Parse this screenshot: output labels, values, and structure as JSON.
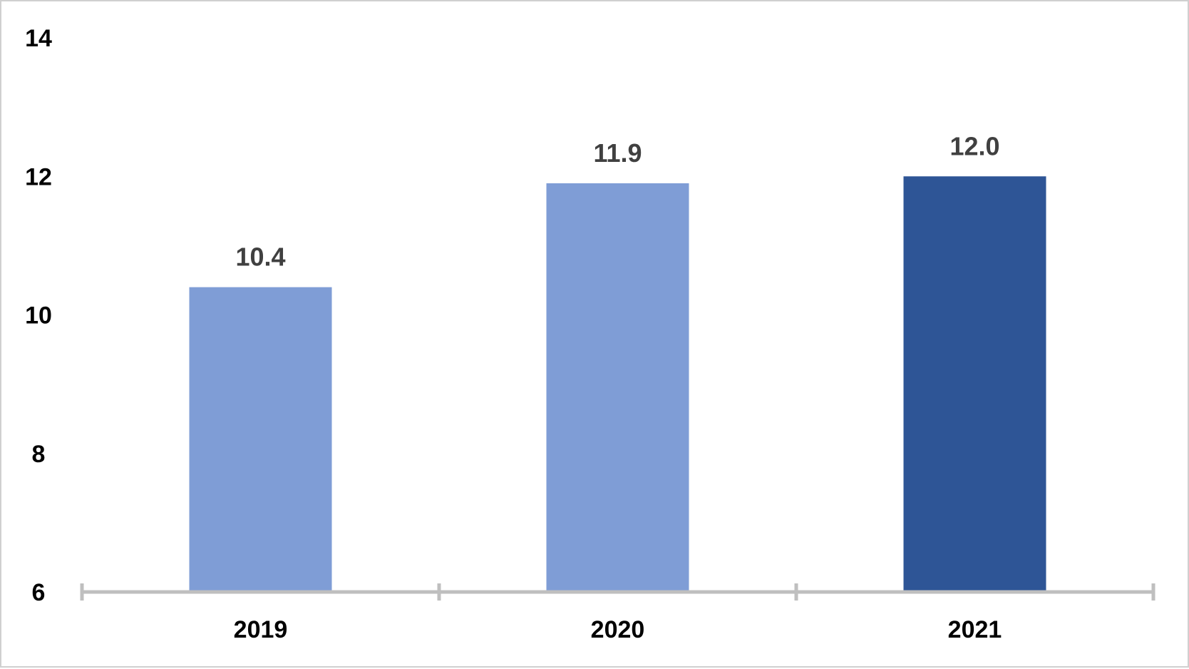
{
  "chart_data": {
    "type": "bar",
    "title": "",
    "xlabel": "",
    "ylabel": "",
    "categories": [
      "2019",
      "2020",
      "2021"
    ],
    "values": [
      10.4,
      11.9,
      12.0
    ],
    "data_labels": [
      "10.4",
      "11.9",
      "12.0"
    ],
    "y_ticks": [
      "6",
      "8",
      "10",
      "12",
      "14"
    ],
    "ylim": [
      6,
      14
    ],
    "grid": false,
    "legend": "none",
    "colors": [
      "#7f9dd6",
      "#7f9dd6",
      "#2e5596"
    ],
    "axis_color": "#bfbfbf"
  }
}
